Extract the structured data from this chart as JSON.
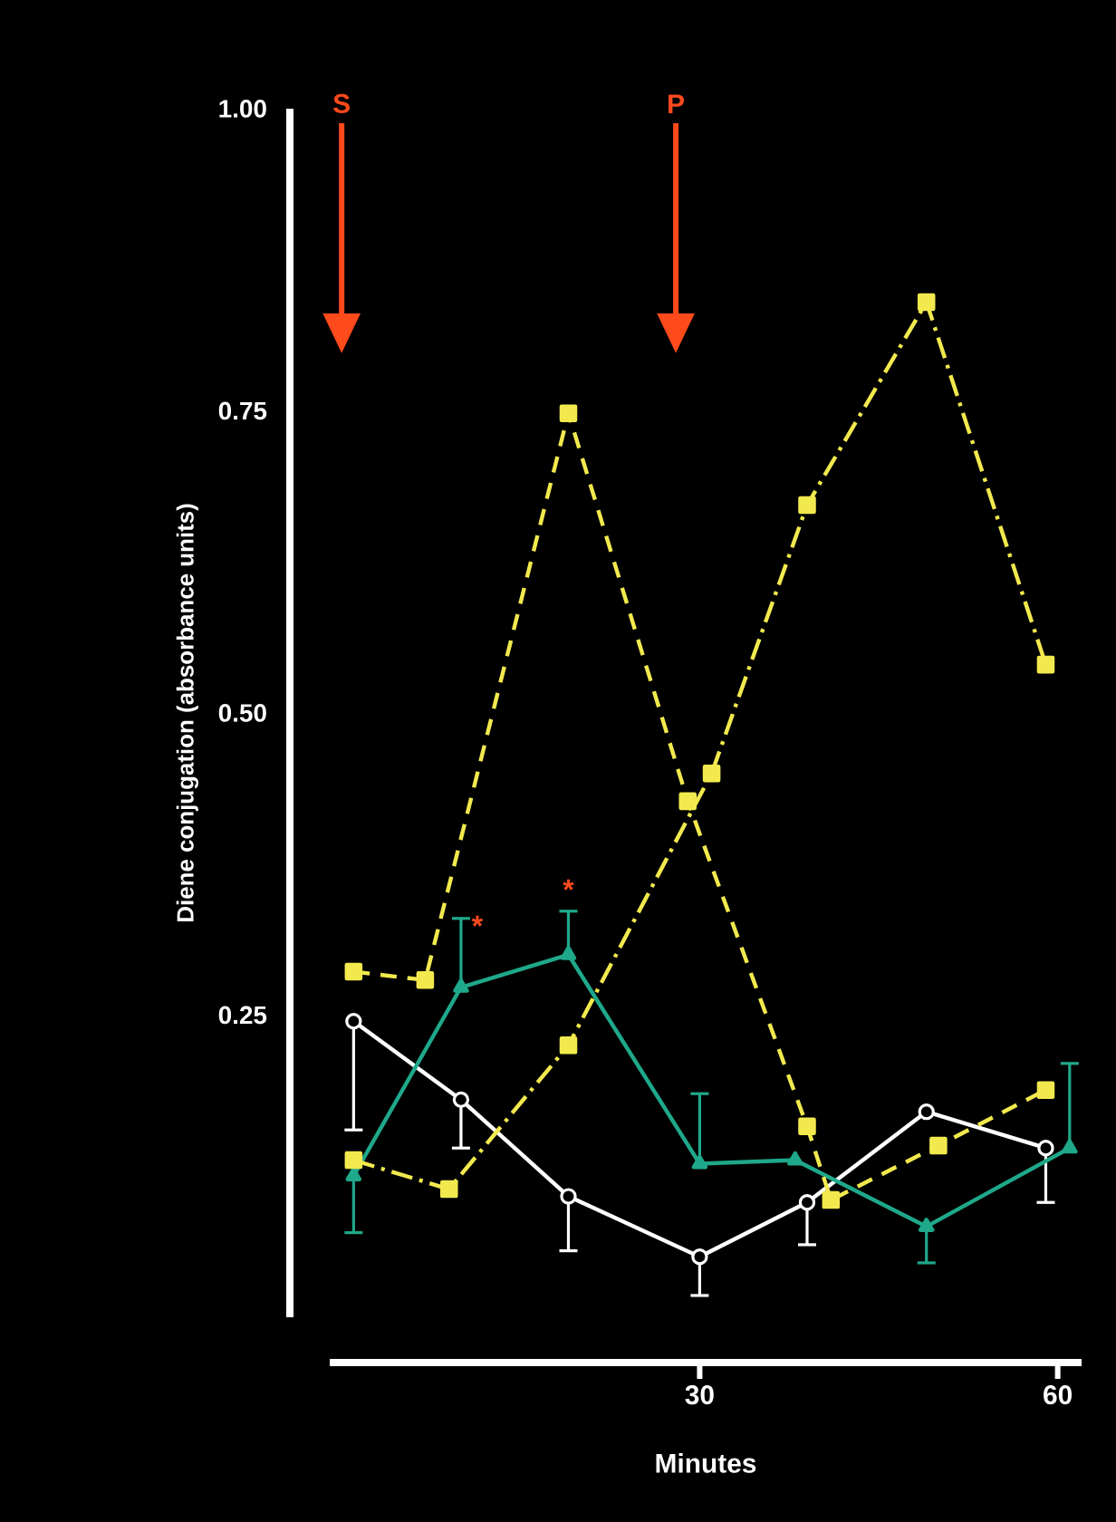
{
  "chart_data": {
    "type": "line",
    "xlabel": "Minutes",
    "ylabel": "Diene conjugation (absorbance units)",
    "xlim": [
      -1,
      62
    ],
    "xticks": [
      30,
      60
    ],
    "ylim": [
      0,
      1
    ],
    "yticks": [
      {
        "value": 0.25,
        "label": "0.25"
      },
      {
        "value": 0.5,
        "label": "0.50"
      },
      {
        "value": 0.75,
        "label": "0.75"
      },
      {
        "value": 1,
        "label": "1.00"
      }
    ],
    "grid": false,
    "series": [
      {
        "color": "#ffffff",
        "marker": "circle",
        "line_style": "solid",
        "x": [
          1,
          10,
          19,
          30,
          39,
          49,
          59
        ],
        "values": [
          0.245,
          0.18,
          0.1,
          0.05,
          0.095,
          0.17,
          0.14
        ],
        "errors": [
          [
            0.155,
            0.245
          ],
          [
            0.14,
            0.18
          ],
          [
            0.055,
            0.1
          ],
          [
            0.018,
            0.05
          ],
          [
            0.06,
            0.095
          ],
          null,
          [
            0.095,
            0.14
          ]
        ]
      },
      {
        "color": "#1fa88a",
        "marker": "triangle",
        "line_style": "solid",
        "x": [
          1,
          10,
          19,
          30,
          38,
          49,
          61
        ],
        "values": [
          0.117,
          0.273,
          0.3,
          0.127,
          0.13,
          0.075,
          0.14
        ],
        "errors": [
          [
            0.07,
            0.117
          ],
          [
            0.273,
            0.33
          ],
          [
            0.3,
            0.336
          ],
          [
            0.127,
            0.185
          ],
          null,
          [
            0.045,
            0.075
          ],
          [
            0.14,
            0.21
          ]
        ]
      },
      {
        "color": "#f2e94e",
        "marker": "square",
        "line_style": "dashed",
        "x": [
          1,
          7,
          19,
          29,
          39,
          41,
          50,
          59
        ],
        "values": [
          0.286,
          0.279,
          0.748,
          0.427,
          0.158,
          0.097,
          0.142,
          0.188
        ]
      },
      {
        "color": "#f2e94e",
        "marker": "square",
        "line_style": "dashdot",
        "x": [
          1,
          9,
          19,
          31,
          39,
          49,
          59
        ],
        "values": [
          0.13,
          0.106,
          0.225,
          0.45,
          0.672,
          0.84,
          0.54
        ]
      }
    ],
    "ref_lines": [
      {
        "axis": "x",
        "value": 0,
        "label": "S",
        "color": "#ff4a1c"
      },
      {
        "axis": "x",
        "value": 28,
        "label": "P",
        "color": "#ff4a1c"
      }
    ],
    "annotations": [
      "*",
      "*"
    ]
  }
}
